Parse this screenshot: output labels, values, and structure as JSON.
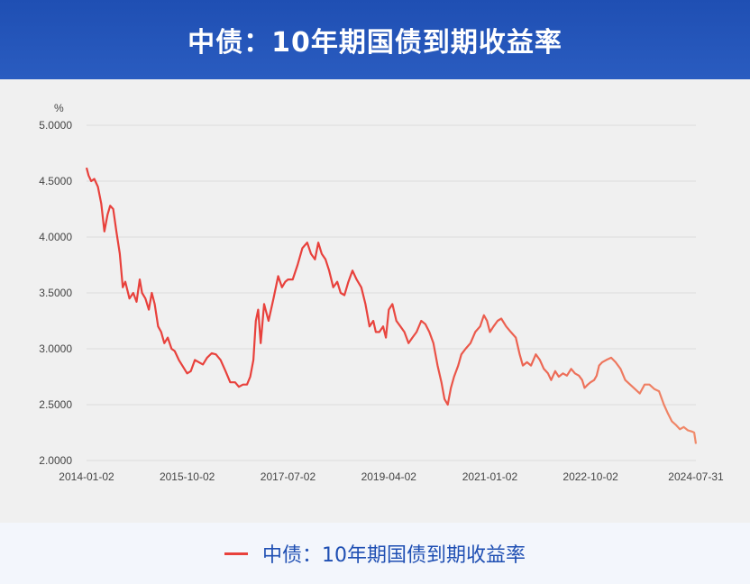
{
  "header": {
    "title": "中债：10年期国债到期收益率"
  },
  "chart_data": {
    "type": "line",
    "ylabel": "%",
    "ylim": [
      2.0,
      5.0
    ],
    "y_ticks": [
      "5.0000",
      "4.5000",
      "4.0000",
      "3.5000",
      "3.0000",
      "2.5000",
      "2.0000"
    ],
    "x_ticks": [
      "2014-01-02",
      "2015-10-02",
      "2017-07-02",
      "2019-04-02",
      "2021-01-02",
      "2022-10-02",
      "2024-07-31"
    ],
    "grid": true,
    "legend_position": "bottom",
    "series": [
      {
        "name": "中债：10年期国债到期收益率",
        "color": "#e8413c",
        "color_end": "#f08a6a",
        "x": [
          "2014-01-02",
          "2014-01-15",
          "2014-02-01",
          "2014-02-20",
          "2014-03-15",
          "2014-04-05",
          "2014-04-25",
          "2014-05-15",
          "2014-06-01",
          "2014-06-20",
          "2014-07-10",
          "2014-08-01",
          "2014-08-20",
          "2014-09-05",
          "2014-10-01",
          "2014-10-25",
          "2014-11-15",
          "2014-12-05",
          "2014-12-20",
          "2015-01-10",
          "2015-02-01",
          "2015-02-20",
          "2015-03-10",
          "2015-04-01",
          "2015-04-20",
          "2015-05-10",
          "2015-06-01",
          "2015-06-25",
          "2015-07-15",
          "2015-08-10",
          "2015-09-01",
          "2015-10-02",
          "2015-10-25",
          "2015-11-20",
          "2015-12-15",
          "2016-01-10",
          "2016-02-05",
          "2016-03-05",
          "2016-04-01",
          "2016-05-01",
          "2016-06-01",
          "2016-07-01",
          "2016-08-01",
          "2016-08-25",
          "2016-09-20",
          "2016-10-15",
          "2016-11-05",
          "2016-11-25",
          "2016-12-10",
          "2016-12-25",
          "2017-01-10",
          "2017-02-01",
          "2017-03-01",
          "2017-04-01",
          "2017-05-01",
          "2017-05-25",
          "2017-06-15",
          "2017-07-02",
          "2017-08-01",
          "2017-09-01",
          "2017-10-01",
          "2017-11-01",
          "2017-11-25",
          "2017-12-20",
          "2018-01-10",
          "2018-02-01",
          "2018-02-25",
          "2018-03-20",
          "2018-04-15",
          "2018-05-10",
          "2018-06-01",
          "2018-06-25",
          "2018-07-20",
          "2018-08-15",
          "2018-09-10",
          "2018-10-10",
          "2018-11-05",
          "2018-12-01",
          "2018-12-25",
          "2019-01-10",
          "2019-02-01",
          "2019-02-25",
          "2019-03-15",
          "2019-04-02",
          "2019-04-25",
          "2019-05-20",
          "2019-06-15",
          "2019-07-10",
          "2019-08-05",
          "2019-08-30",
          "2019-09-25",
          "2019-10-25",
          "2019-11-20",
          "2019-12-15",
          "2020-01-10",
          "2020-02-05",
          "2020-03-01",
          "2020-03-20",
          "2020-04-10",
          "2020-04-30",
          "2020-05-20",
          "2020-06-15",
          "2020-07-05",
          "2020-08-01",
          "2020-09-01",
          "2020-10-01",
          "2020-11-01",
          "2020-11-25",
          "2020-12-15",
          "2021-01-02",
          "2021-01-25",
          "2021-02-20",
          "2021-03-15",
          "2021-04-15",
          "2021-05-15",
          "2021-06-15",
          "2021-07-10",
          "2021-07-30",
          "2021-08-25",
          "2021-09-20",
          "2021-10-20",
          "2021-11-15",
          "2021-12-10",
          "2022-01-05",
          "2022-01-25",
          "2022-02-20",
          "2022-03-15",
          "2022-04-10",
          "2022-05-05",
          "2022-06-01",
          "2022-06-25",
          "2022-07-20",
          "2022-08-10",
          "2022-08-25",
          "2022-09-15",
          "2022-10-02",
          "2022-10-25",
          "2022-11-10",
          "2022-11-25",
          "2022-12-15",
          "2023-01-10",
          "2023-02-10",
          "2023-03-10",
          "2023-04-10",
          "2023-05-10",
          "2023-06-10",
          "2023-07-10",
          "2023-08-10",
          "2023-09-10",
          "2023-10-10",
          "2023-11-10",
          "2023-12-10",
          "2024-01-10",
          "2024-02-05",
          "2024-03-01",
          "2024-03-25",
          "2024-04-20",
          "2024-05-15",
          "2024-06-10",
          "2024-07-05",
          "2024-07-20",
          "2024-07-31"
        ],
        "values": [
          4.62,
          4.55,
          4.5,
          4.52,
          4.45,
          4.3,
          4.05,
          4.2,
          4.28,
          4.25,
          4.05,
          3.85,
          3.55,
          3.6,
          3.45,
          3.5,
          3.42,
          3.62,
          3.5,
          3.45,
          3.35,
          3.5,
          3.4,
          3.2,
          3.15,
          3.05,
          3.1,
          3.0,
          2.98,
          2.9,
          2.85,
          2.78,
          2.8,
          2.9,
          2.88,
          2.86,
          2.92,
          2.96,
          2.95,
          2.9,
          2.8,
          2.7,
          2.7,
          2.66,
          2.68,
          2.68,
          2.75,
          2.9,
          3.25,
          3.35,
          3.05,
          3.4,
          3.25,
          3.45,
          3.65,
          3.55,
          3.6,
          3.62,
          3.62,
          3.75,
          3.9,
          3.95,
          3.85,
          3.8,
          3.95,
          3.85,
          3.8,
          3.7,
          3.55,
          3.6,
          3.5,
          3.48,
          3.6,
          3.7,
          3.62,
          3.55,
          3.4,
          3.2,
          3.25,
          3.15,
          3.15,
          3.2,
          3.1,
          3.35,
          3.4,
          3.25,
          3.2,
          3.15,
          3.05,
          3.1,
          3.15,
          3.25,
          3.22,
          3.15,
          3.05,
          2.85,
          2.7,
          2.55,
          2.5,
          2.65,
          2.75,
          2.85,
          2.95,
          3.0,
          3.05,
          3.15,
          3.2,
          3.3,
          3.25,
          3.15,
          3.2,
          3.25,
          3.27,
          3.2,
          3.15,
          3.1,
          2.95,
          2.85,
          2.88,
          2.85,
          2.95,
          2.9,
          2.82,
          2.78,
          2.72,
          2.8,
          2.75,
          2.78,
          2.76,
          2.82,
          2.78,
          2.76,
          2.72,
          2.65,
          2.68,
          2.7,
          2.72,
          2.76,
          2.85,
          2.88,
          2.9,
          2.92,
          2.88,
          2.82,
          2.72,
          2.68,
          2.64,
          2.6,
          2.68,
          2.68,
          2.64,
          2.62,
          2.5,
          2.42,
          2.35,
          2.32,
          2.28,
          2.3,
          2.27,
          2.26,
          2.25,
          2.15
        ]
      }
    ]
  }
}
